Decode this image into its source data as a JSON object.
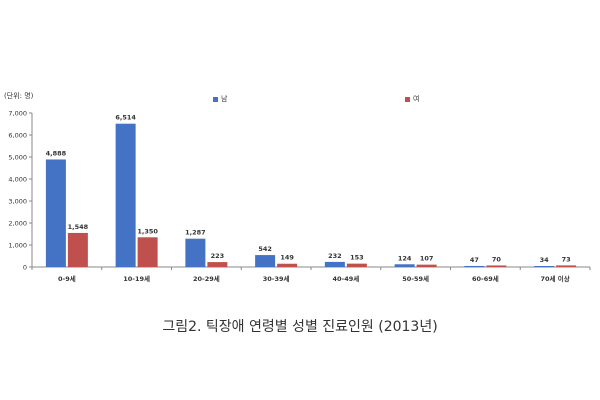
{
  "chart_data": {
    "type": "bar",
    "unit_label": "(단위: 명)",
    "categories": [
      "0-9세",
      "10-19세",
      "20-29세",
      "30-39세",
      "40-49세",
      "50-59세",
      "60-69세",
      "70세 이상"
    ],
    "series": [
      {
        "name": "남",
        "color": "#4472C4",
        "values": [
          4888,
          6514,
          1287,
          542,
          232,
          124,
          47,
          34
        ],
        "labels": [
          "4,888",
          "6,514",
          "1,287",
          "542",
          "232",
          "124",
          "47",
          "34"
        ]
      },
      {
        "name": "여",
        "color": "#C0504D",
        "values": [
          1548,
          1350,
          223,
          149,
          153,
          107,
          70,
          73
        ],
        "labels": [
          "1,548",
          "1,350",
          "223",
          "149",
          "153",
          "107",
          "70",
          "73"
        ]
      }
    ],
    "yticks": [
      0,
      1000,
      2000,
      3000,
      4000,
      5000,
      6000,
      7000
    ],
    "ytick_labels": [
      "0",
      "1,000",
      "2,000",
      "3,000",
      "4,000",
      "5,000",
      "6,000",
      "7,000"
    ],
    "ylim": [
      0,
      7000
    ],
    "grid": false,
    "legend": "top"
  },
  "caption": "그림2. 틱장애 연령별 성별 진료인원 (2013년)"
}
